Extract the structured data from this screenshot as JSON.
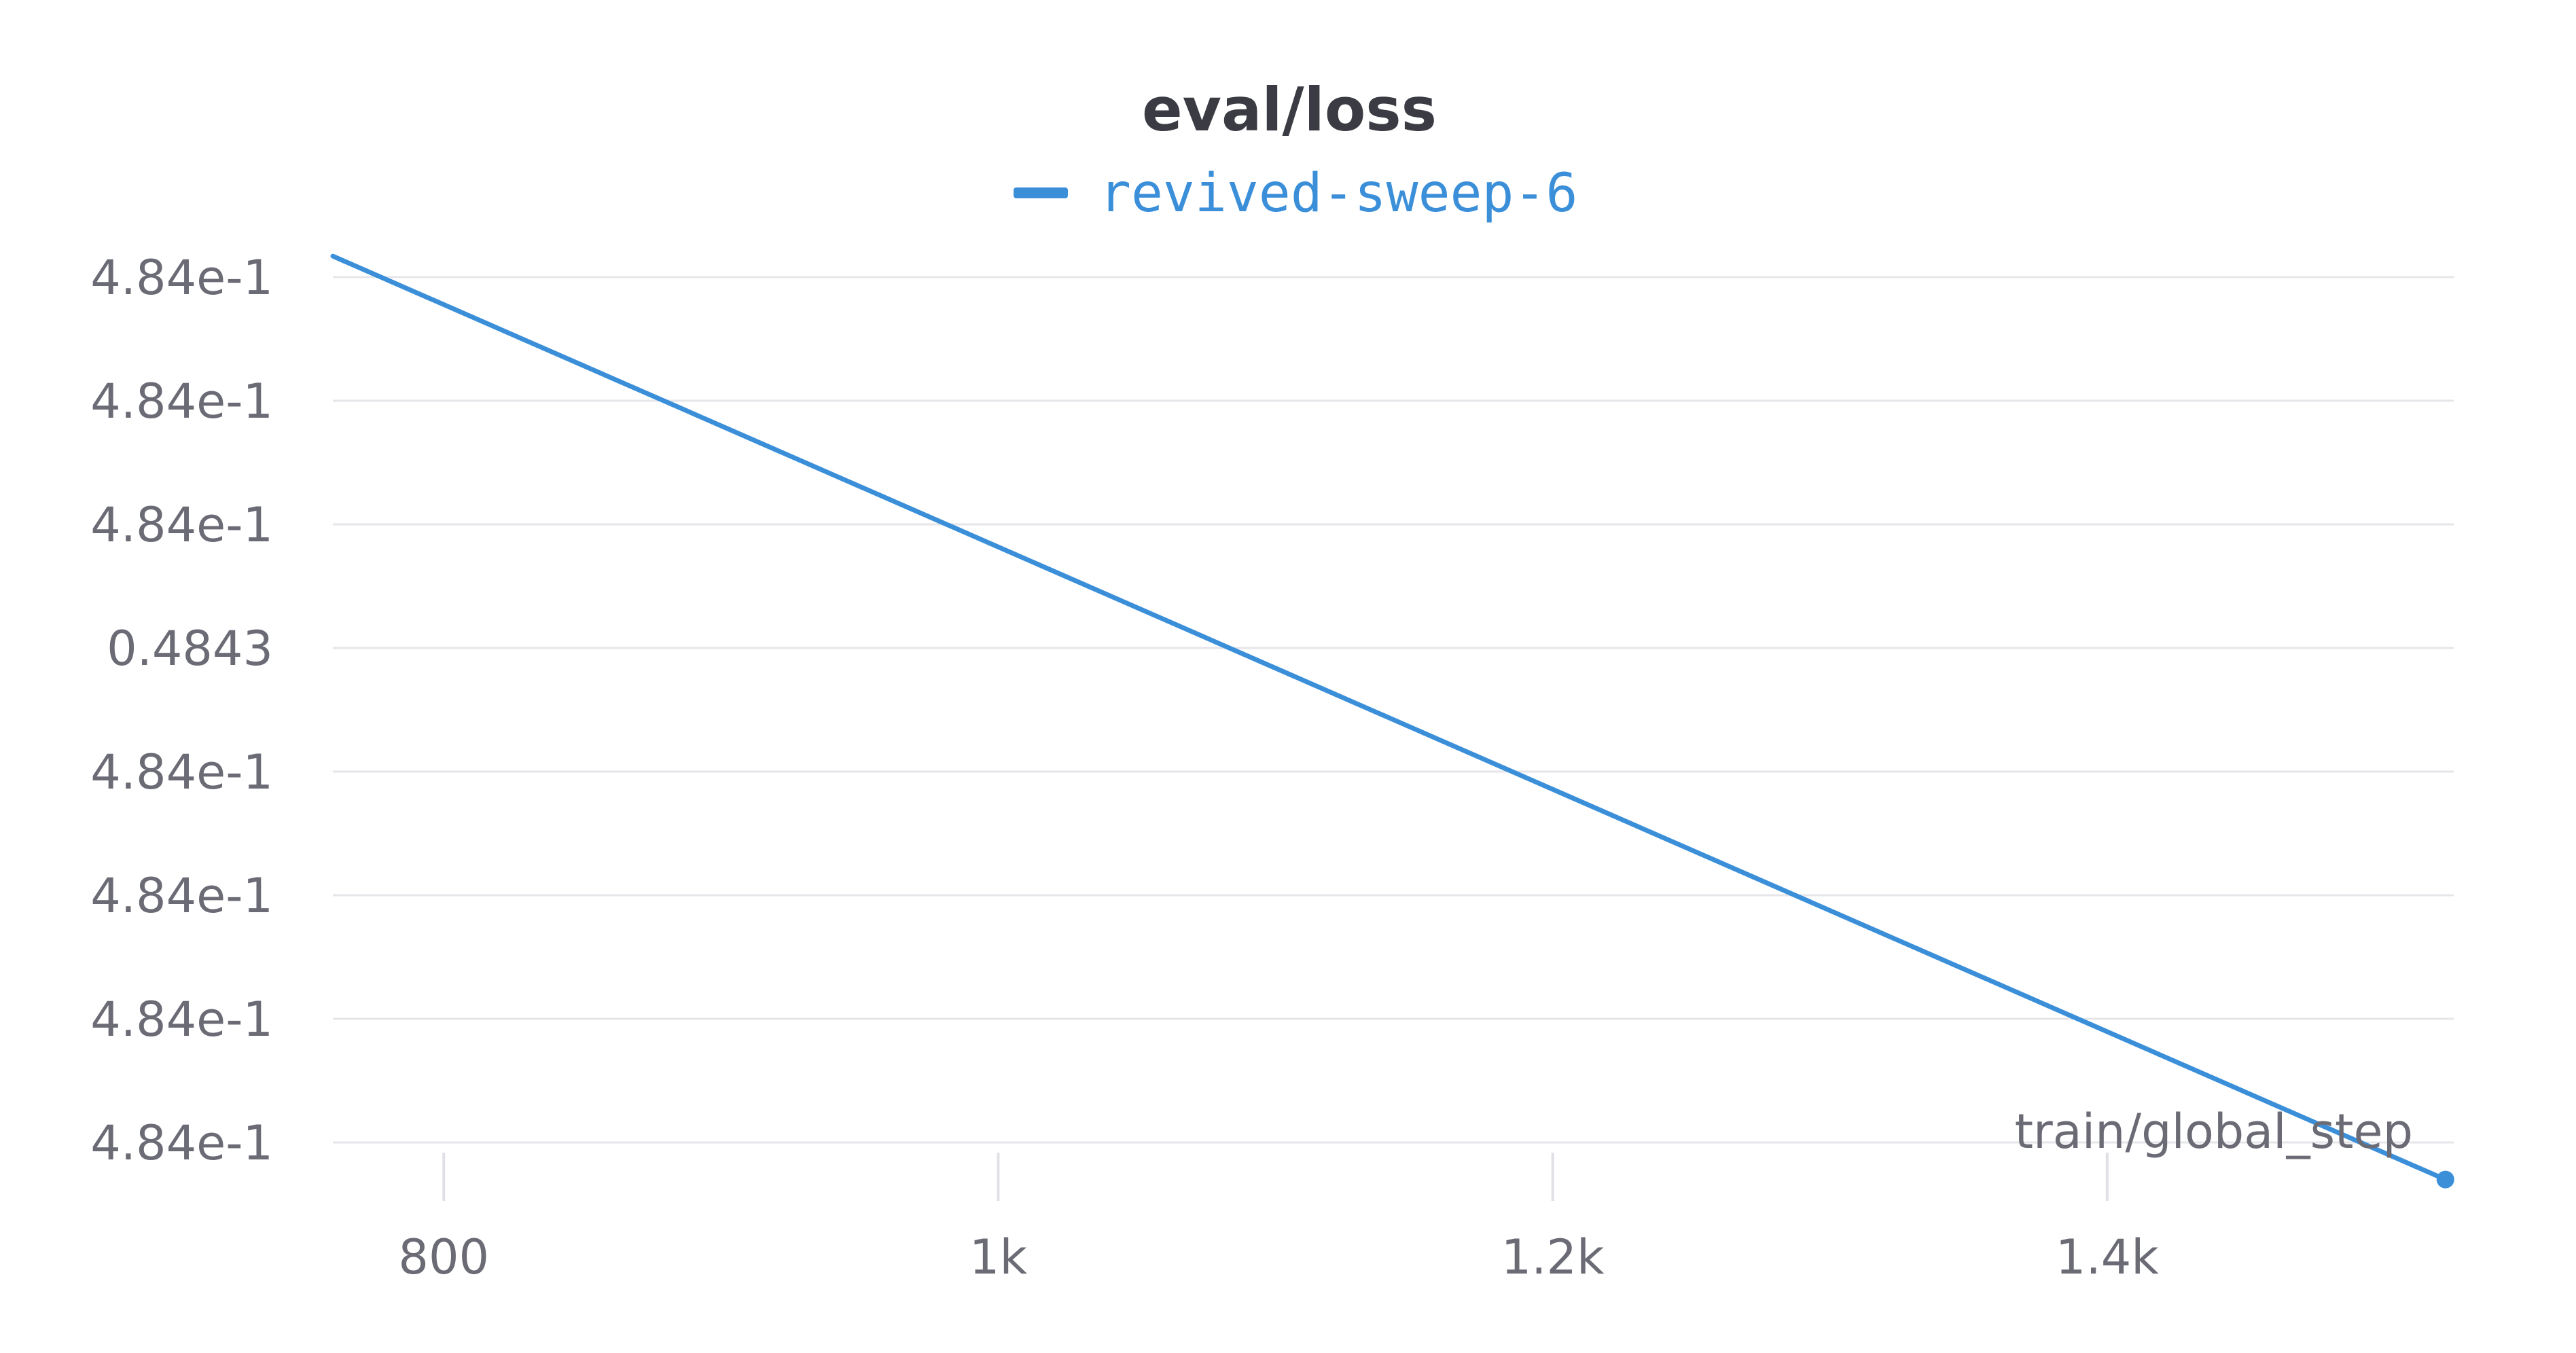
{
  "chart_data": {
    "type": "line",
    "title": "eval/loss",
    "xlabel": "train/global_step",
    "ylabel": "",
    "xlim": [
      760,
      1525
    ],
    "ylim": [
      -0.5,
      7.2
    ],
    "x_ticks": [
      {
        "value": 800,
        "label": "800"
      },
      {
        "value": 1000,
        "label": "1k"
      },
      {
        "value": 1200,
        "label": "1.2k"
      },
      {
        "value": 1400,
        "label": "1.4k"
      }
    ],
    "y_ticks": [
      {
        "value": 7,
        "label": "4.84e-1"
      },
      {
        "value": 6,
        "label": "4.84e-1"
      },
      {
        "value": 5,
        "label": "4.84e-1"
      },
      {
        "value": 4,
        "label": "0.4843"
      },
      {
        "value": 3,
        "label": "4.84e-1"
      },
      {
        "value": 2,
        "label": "4.84e-1"
      },
      {
        "value": 1,
        "label": "4.84e-1"
      },
      {
        "value": 0,
        "label": "4.84e-1"
      }
    ],
    "grid": true,
    "legend_position": "top-center",
    "series": [
      {
        "name": "revived-sweep-6",
        "color": "#3b8fd9",
        "x": [
          760,
          1522
        ],
        "y": [
          7.17,
          -0.3
        ],
        "end_marker": true
      }
    ]
  }
}
